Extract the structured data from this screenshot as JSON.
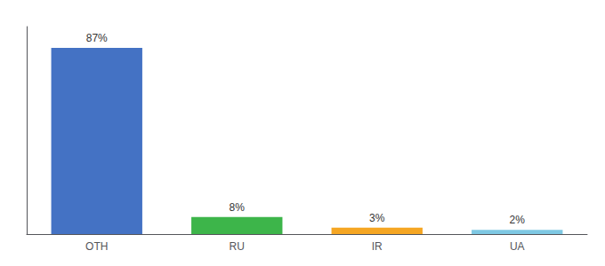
{
  "chart_data": {
    "type": "bar",
    "categories": [
      "OTH",
      "RU",
      "IR",
      "UA"
    ],
    "values": [
      87,
      8,
      3,
      2
    ],
    "value_labels": [
      "87%",
      "8%",
      "3%",
      "2%"
    ],
    "colors": [
      "#4472c4",
      "#3db54a",
      "#f5a623",
      "#7ec8e3"
    ],
    "ylim": [
      0,
      97
    ],
    "grid": false,
    "data_labels": true,
    "tick_labels": "x"
  }
}
